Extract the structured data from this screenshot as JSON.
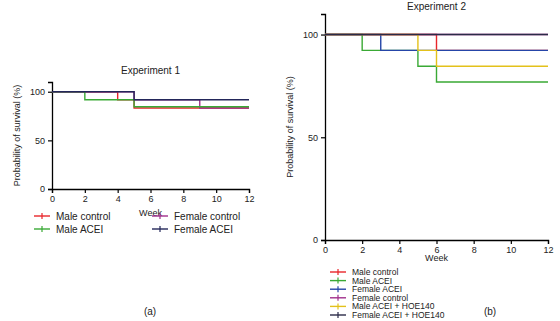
{
  "chart_data": [
    {
      "type": "line",
      "line_style": "step",
      "title": "Experiment 1",
      "x_label": "Week",
      "y_label": "Probability of survival (%)",
      "annotations": [
        "(a)"
      ],
      "legend": "bottom",
      "x": [
        0,
        1,
        2,
        3,
        4,
        5,
        6,
        7,
        8,
        9,
        10,
        11,
        12
      ],
      "xlim": [
        0,
        12
      ],
      "xticks": [
        0,
        2,
        4,
        6,
        8,
        10,
        12
      ],
      "ylim": [
        0,
        110
      ],
      "yticks": [
        0,
        50,
        100
      ],
      "series": [
        {
          "name": "Male control",
          "color": "#e8262a",
          "values": [
            100,
            100,
            100,
            100,
            91.7,
            83.3,
            83.3,
            83.3,
            83.3,
            83.3,
            83.3,
            83.3,
            83.3
          ]
        },
        {
          "name": "Female control",
          "color": "#a12f8c",
          "values": [
            100,
            100,
            100,
            100,
            100,
            91.7,
            91.7,
            91.7,
            91.7,
            83.3,
            83.3,
            83.3,
            83.3
          ]
        },
        {
          "name": "Male ACEI",
          "color": "#3aa935",
          "values": [
            100,
            100,
            91.7,
            91.7,
            91.7,
            84.6,
            84.6,
            84.6,
            84.6,
            84.6,
            84.6,
            84.6,
            84.6
          ]
        },
        {
          "name": "Female ACEI",
          "color": "#23275a",
          "values": [
            100,
            100,
            100,
            100,
            100,
            91.7,
            91.7,
            91.7,
            91.7,
            91.7,
            91.7,
            91.7,
            91.7
          ]
        }
      ]
    },
    {
      "type": "line",
      "line_style": "step",
      "title": "Experiment 2",
      "x_label": "Week",
      "y_label": "Probability of survival (%)",
      "annotations": [
        "(b)"
      ],
      "legend": "bottom",
      "x": [
        0,
        1,
        2,
        3,
        4,
        5,
        6,
        7,
        8,
        9,
        10,
        11,
        12
      ],
      "xlim": [
        0,
        12
      ],
      "xticks": [
        0,
        2,
        4,
        6,
        8,
        10,
        12
      ],
      "ylim": [
        0,
        110
      ],
      "yticks": [
        0,
        50,
        100
      ],
      "series": [
        {
          "name": "Male control",
          "color": "#e8262a",
          "values": [
            100,
            100,
            100,
            100,
            100,
            100,
            92.3,
            92.3,
            92.3,
            92.3,
            92.3,
            92.3,
            92.3
          ]
        },
        {
          "name": "Male ACEI",
          "color": "#3aa935",
          "values": [
            100,
            100,
            92.3,
            92.3,
            92.3,
            84.6,
            76.9,
            76.9,
            76.9,
            76.9,
            76.9,
            76.9,
            76.9
          ]
        },
        {
          "name": "Female ACEI",
          "color": "#2545a8",
          "values": [
            100,
            100,
            100,
            92.3,
            92.3,
            92.3,
            92.3,
            92.3,
            92.3,
            92.3,
            92.3,
            92.3,
            92.3
          ]
        },
        {
          "name": "Female control",
          "color": "#a12f8c",
          "values": [
            100,
            100,
            100,
            100,
            100,
            100,
            100,
            100,
            100,
            100,
            100,
            100,
            100
          ]
        },
        {
          "name": "Male ACEI + HOE140",
          "color": "#e3c11b",
          "values": [
            100,
            100,
            100,
            100,
            100,
            92.3,
            84.6,
            84.6,
            84.6,
            84.6,
            84.6,
            84.6,
            84.6
          ]
        },
        {
          "name": "Female ACEI + HOE140",
          "color": "#2b2b48",
          "values": [
            100,
            100,
            100,
            100,
            100,
            100,
            100,
            100,
            100,
            100,
            100,
            100,
            100
          ]
        }
      ]
    }
  ]
}
